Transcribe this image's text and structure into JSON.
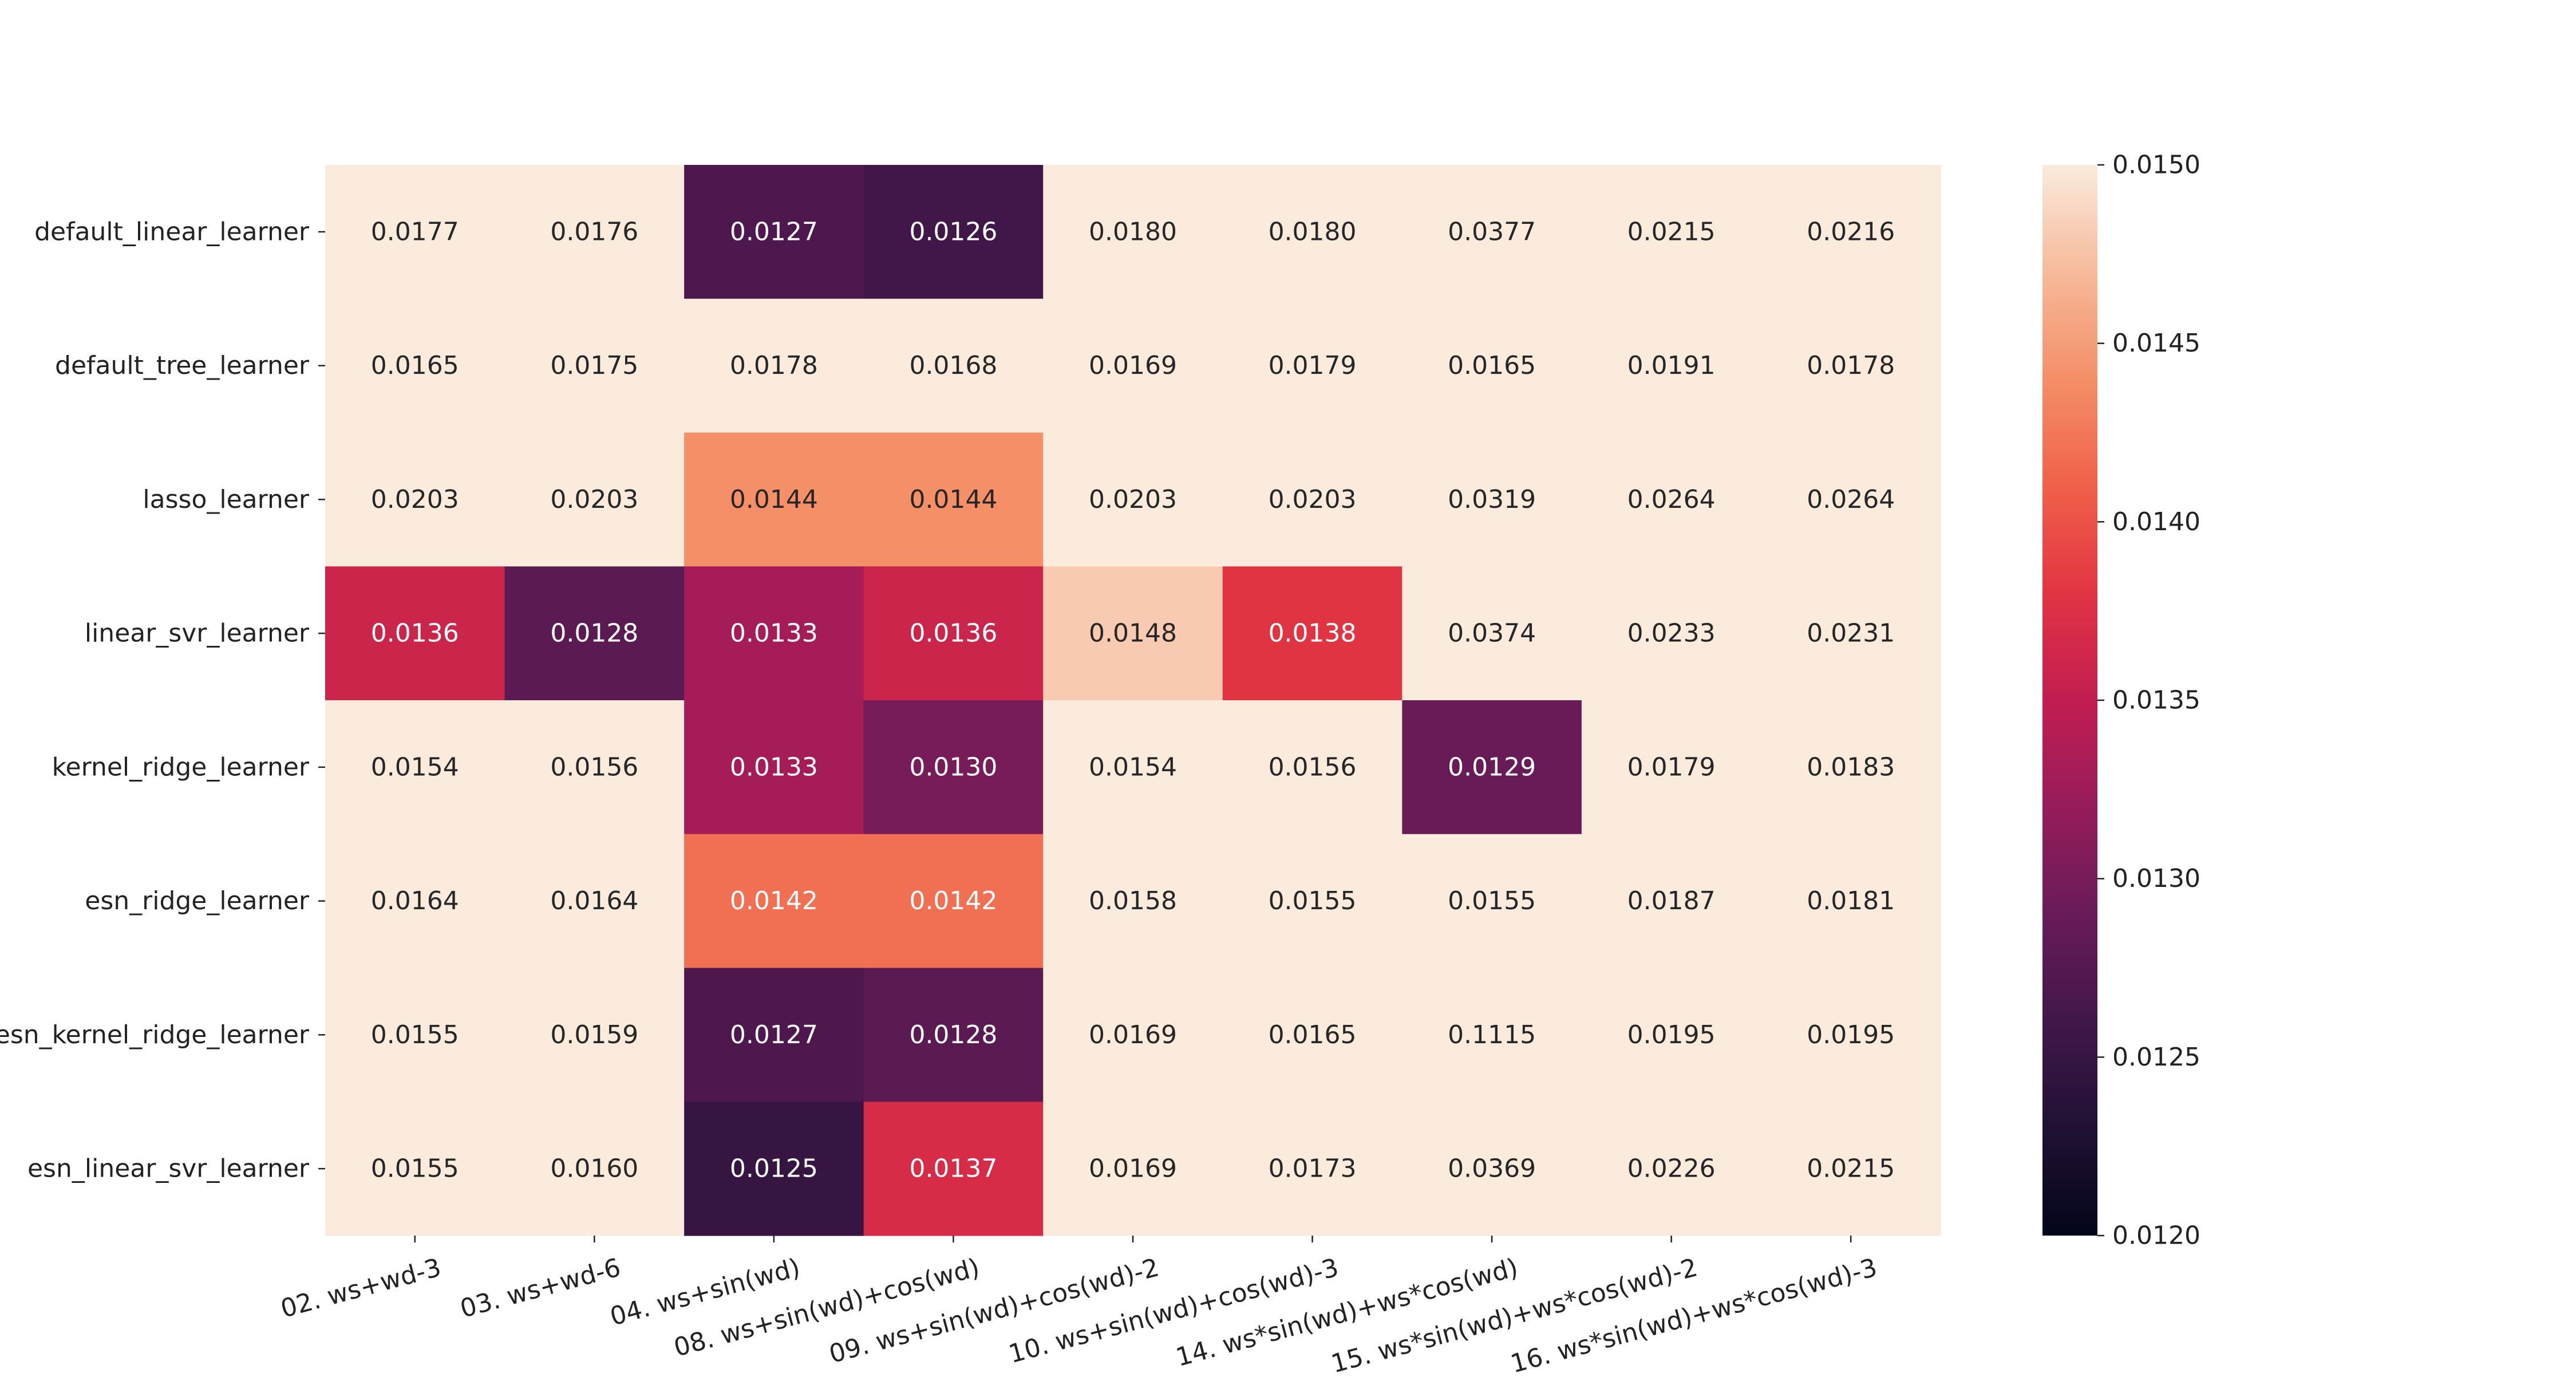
{
  "chart_data": {
    "type": "heatmap",
    "title": "",
    "xlabel": "",
    "ylabel": "",
    "rows": [
      "default_linear_learner",
      "default_tree_learner",
      "lasso_learner",
      "linear_svr_learner",
      "kernel_ridge_learner",
      "esn_ridge_learner",
      "esn_kernel_ridge_learner",
      "esn_linear_svr_learner"
    ],
    "columns": [
      "02. ws+wd-3",
      "03. ws+wd-6",
      "04. ws+sin(wd)",
      "08. ws+sin(wd)+cos(wd)",
      "09. ws+sin(wd)+cos(wd)-2",
      "10. ws+sin(wd)+cos(wd)-3",
      "14. ws*sin(wd)+ws*cos(wd)",
      "15. ws*sin(wd)+ws*cos(wd)-2",
      "16. ws*sin(wd)+ws*cos(wd)-3"
    ],
    "values": [
      [
        "0.0177",
        "0.0176",
        "0.0127",
        "0.0126",
        "0.0180",
        "0.0180",
        "0.0377",
        "0.0215",
        "0.0216"
      ],
      [
        "0.0165",
        "0.0175",
        "0.0178",
        "0.0168",
        "0.0169",
        "0.0179",
        "0.0165",
        "0.0191",
        "0.0178"
      ],
      [
        "0.0203",
        "0.0203",
        "0.0144",
        "0.0144",
        "0.0203",
        "0.0203",
        "0.0319",
        "0.0264",
        "0.0264"
      ],
      [
        "0.0136",
        "0.0128",
        "0.0133",
        "0.0136",
        "0.0148",
        "0.0138",
        "0.0374",
        "0.0233",
        "0.0231"
      ],
      [
        "0.0154",
        "0.0156",
        "0.0133",
        "0.0130",
        "0.0154",
        "0.0156",
        "0.0129",
        "0.0179",
        "0.0183"
      ],
      [
        "0.0164",
        "0.0164",
        "0.0142",
        "0.0142",
        "0.0158",
        "0.0155",
        "0.0155",
        "0.0187",
        "0.0181"
      ],
      [
        "0.0155",
        "0.0159",
        "0.0127",
        "0.0128",
        "0.0169",
        "0.0165",
        "0.1115",
        "0.0195",
        "0.0195"
      ],
      [
        "0.0155",
        "0.0160",
        "0.0125",
        "0.0137",
        "0.0169",
        "0.0173",
        "0.0369",
        "0.0226",
        "0.0215"
      ]
    ],
    "colorbar": {
      "min": 0.012,
      "max": 0.015,
      "ticks": [
        "0.0120",
        "0.0125",
        "0.0130",
        "0.0135",
        "0.0140",
        "0.0145",
        "0.0150"
      ],
      "colormap": "rocket",
      "position": "right"
    },
    "grid": false,
    "legend": "none"
  }
}
